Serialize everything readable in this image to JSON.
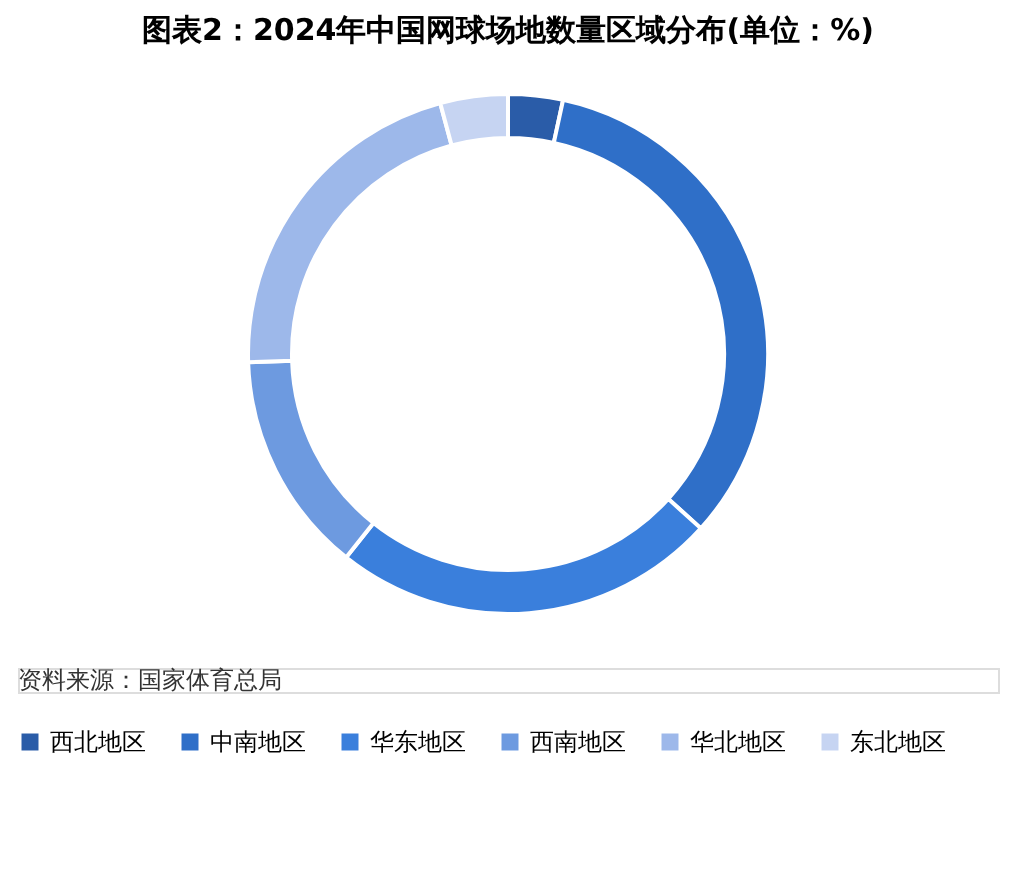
{
  "chart_data": {
    "type": "donut",
    "title": "图表2：2024年中国网球场地数量区域分布(单位：%)",
    "categories": [
      "西北地区",
      "中南地区",
      "华东地区",
      "西南地区",
      "华北地区",
      "东北地区"
    ],
    "values": [
      3.4,
      33.3,
      24.0,
      13.8,
      21.3,
      4.2
    ],
    "colors": [
      "#2a5ca8",
      "#2f6fc8",
      "#3a7fdc",
      "#6d9ae0",
      "#9db8ea",
      "#c6d4f2"
    ],
    "legend": "bottom",
    "annotations": [
      "资料来源：国家体育总局"
    ]
  }
}
